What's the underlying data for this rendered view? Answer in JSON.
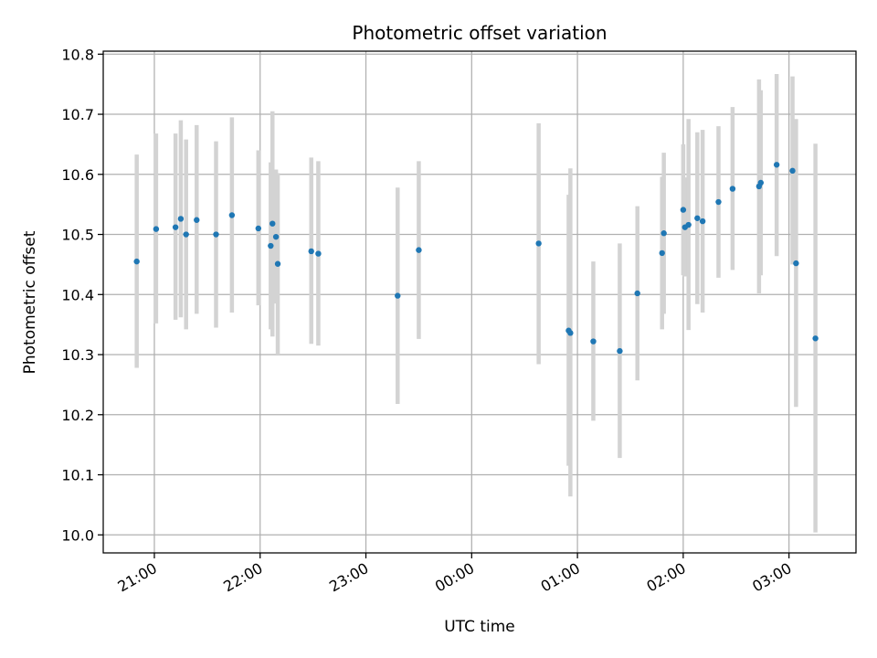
{
  "chart_data": {
    "type": "scatter",
    "title": "Photometric offset variation",
    "xlabel": "UTC time",
    "ylabel": "Photometric offset",
    "x_ticks": [
      "21:00",
      "22:00",
      "23:00",
      "00:00",
      "01:00",
      "02:00",
      "03:00"
    ],
    "x_tick_hours": [
      21,
      22,
      23,
      24,
      25,
      26,
      27
    ],
    "y_ticks": [
      "10.0",
      "10.1",
      "10.2",
      "10.3",
      "10.4",
      "10.5",
      "10.6",
      "10.7",
      "10.8"
    ],
    "xlim": [
      "20:31",
      "03:38"
    ],
    "ylim": [
      9.97,
      10.805
    ],
    "grid": true,
    "point_color": "#1f77b4",
    "errorbar_color": "#d3d3d3",
    "points": [
      {
        "t": "20:50",
        "y": 10.455,
        "lo": 10.278,
        "hi": 10.633
      },
      {
        "t": "21:01",
        "y": 10.509,
        "lo": 10.352,
        "hi": 10.668
      },
      {
        "t": "21:12",
        "y": 10.512,
        "lo": 10.358,
        "hi": 10.668
      },
      {
        "t": "21:15",
        "y": 10.526,
        "lo": 10.362,
        "hi": 10.69
      },
      {
        "t": "21:18",
        "y": 10.5,
        "lo": 10.342,
        "hi": 10.658
      },
      {
        "t": "21:24",
        "y": 10.524,
        "lo": 10.368,
        "hi": 10.682
      },
      {
        "t": "21:35",
        "y": 10.5,
        "lo": 10.345,
        "hi": 10.655
      },
      {
        "t": "21:44",
        "y": 10.532,
        "lo": 10.37,
        "hi": 10.695
      },
      {
        "t": "21:59",
        "y": 10.51,
        "lo": 10.382,
        "hi": 10.64
      },
      {
        "t": "22:06",
        "y": 10.481,
        "lo": 10.342,
        "hi": 10.62
      },
      {
        "t": "22:07",
        "y": 10.518,
        "lo": 10.33,
        "hi": 10.705
      },
      {
        "t": "22:09",
        "y": 10.496,
        "lo": 10.385,
        "hi": 10.608
      },
      {
        "t": "22:10",
        "y": 10.451,
        "lo": 10.3,
        "hi": 10.602
      },
      {
        "t": "22:29",
        "y": 10.472,
        "lo": 10.318,
        "hi": 10.628
      },
      {
        "t": "22:33",
        "y": 10.468,
        "lo": 10.315,
        "hi": 10.622
      },
      {
        "t": "23:18",
        "y": 10.398,
        "lo": 10.218,
        "hi": 10.578
      },
      {
        "t": "23:30",
        "y": 10.474,
        "lo": 10.326,
        "hi": 10.622
      },
      {
        "t": "00:38",
        "y": 10.485,
        "lo": 10.284,
        "hi": 10.685
      },
      {
        "t": "00:55",
        "y": 10.34,
        "lo": 10.115,
        "hi": 10.566
      },
      {
        "t": "00:56",
        "y": 10.336,
        "lo": 10.064,
        "hi": 10.61
      },
      {
        "t": "01:09",
        "y": 10.322,
        "lo": 10.19,
        "hi": 10.455
      },
      {
        "t": "01:24",
        "y": 10.306,
        "lo": 10.128,
        "hi": 10.485
      },
      {
        "t": "01:34",
        "y": 10.402,
        "lo": 10.257,
        "hi": 10.547
      },
      {
        "t": "01:48",
        "y": 10.469,
        "lo": 10.342,
        "hi": 10.596
      },
      {
        "t": "01:49",
        "y": 10.502,
        "lo": 10.368,
        "hi": 10.636
      },
      {
        "t": "02:00",
        "y": 10.541,
        "lo": 10.432,
        "hi": 10.65
      },
      {
        "t": "02:01",
        "y": 10.512,
        "lo": 10.43,
        "hi": 10.595
      },
      {
        "t": "02:03",
        "y": 10.516,
        "lo": 10.341,
        "hi": 10.692
      },
      {
        "t": "02:08",
        "y": 10.527,
        "lo": 10.384,
        "hi": 10.67
      },
      {
        "t": "02:11",
        "y": 10.522,
        "lo": 10.37,
        "hi": 10.674
      },
      {
        "t": "02:20",
        "y": 10.554,
        "lo": 10.428,
        "hi": 10.68
      },
      {
        "t": "02:28",
        "y": 10.576,
        "lo": 10.441,
        "hi": 10.712
      },
      {
        "t": "02:43",
        "y": 10.58,
        "lo": 10.402,
        "hi": 10.758
      },
      {
        "t": "02:44",
        "y": 10.586,
        "lo": 10.432,
        "hi": 10.74
      },
      {
        "t": "02:53",
        "y": 10.616,
        "lo": 10.464,
        "hi": 10.767
      },
      {
        "t": "03:02",
        "y": 10.606,
        "lo": 10.45,
        "hi": 10.763
      },
      {
        "t": "03:04",
        "y": 10.452,
        "lo": 10.213,
        "hi": 10.692
      },
      {
        "t": "03:15",
        "y": 10.327,
        "lo": 10.004,
        "hi": 10.651
      }
    ]
  }
}
